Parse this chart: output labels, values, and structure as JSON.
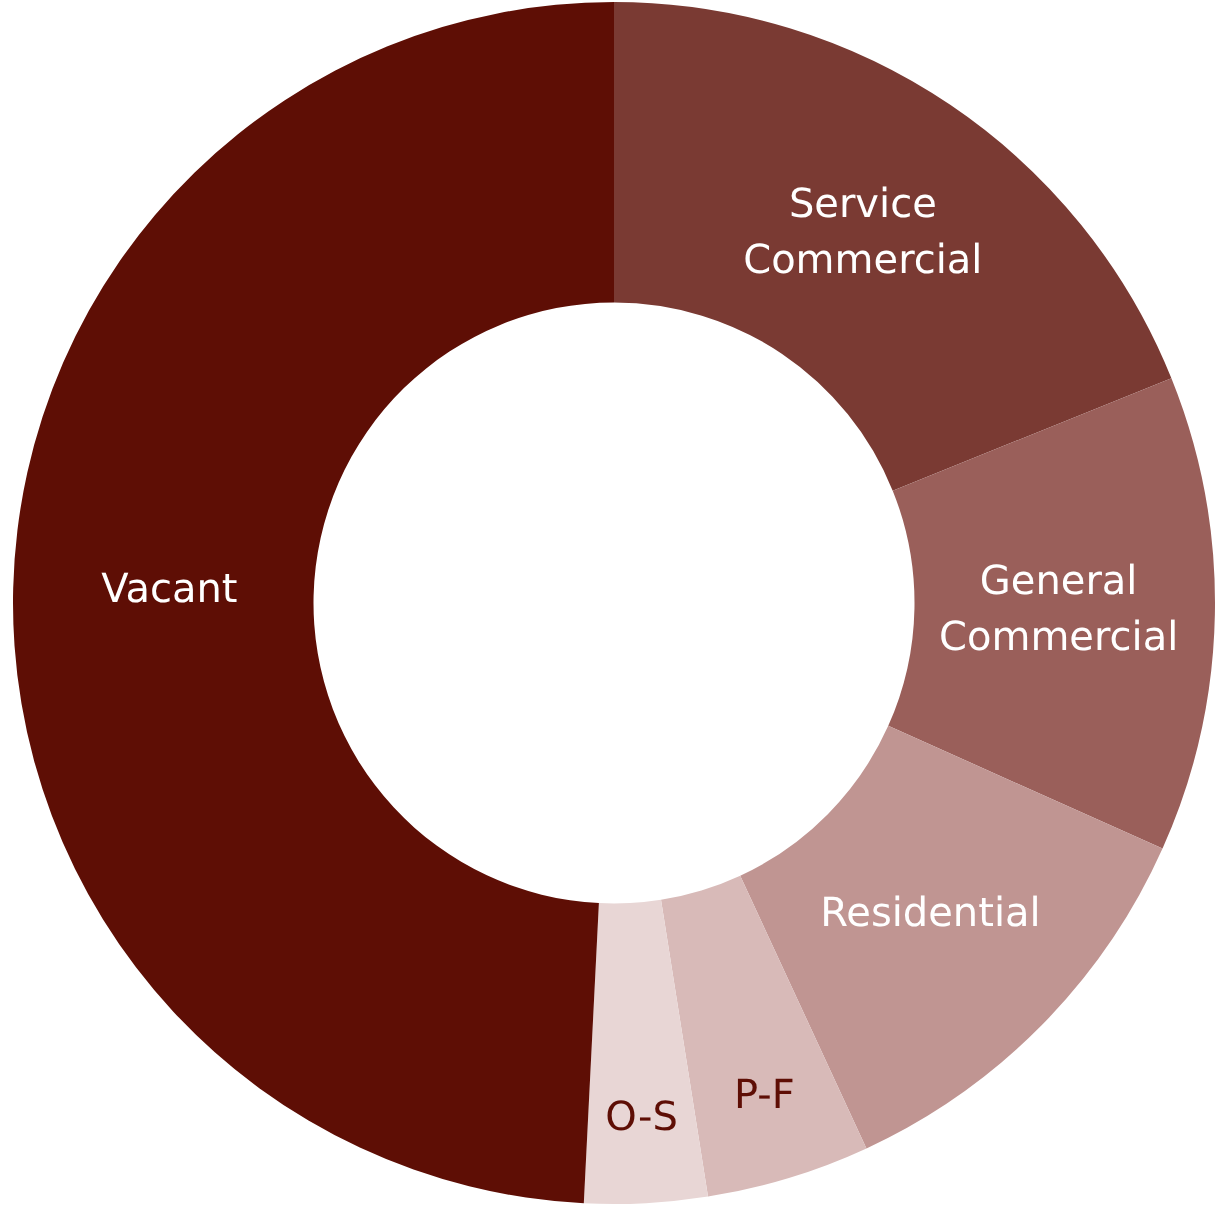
{
  "chart_data": {
    "type": "donut",
    "categories": [
      "Service Commercial",
      "General Commercial",
      "Residential",
      "P-F",
      "O-S",
      "Vacant"
    ],
    "values": [
      18.9,
      12.8,
      11.4,
      4.4,
      3.3,
      49.2
    ],
    "colors": [
      "#7a3a33",
      "#9a5f5a",
      "#c09592",
      "#d8bab8",
      "#e8d6d5",
      "#5e0e05"
    ],
    "legend": false
  }
}
